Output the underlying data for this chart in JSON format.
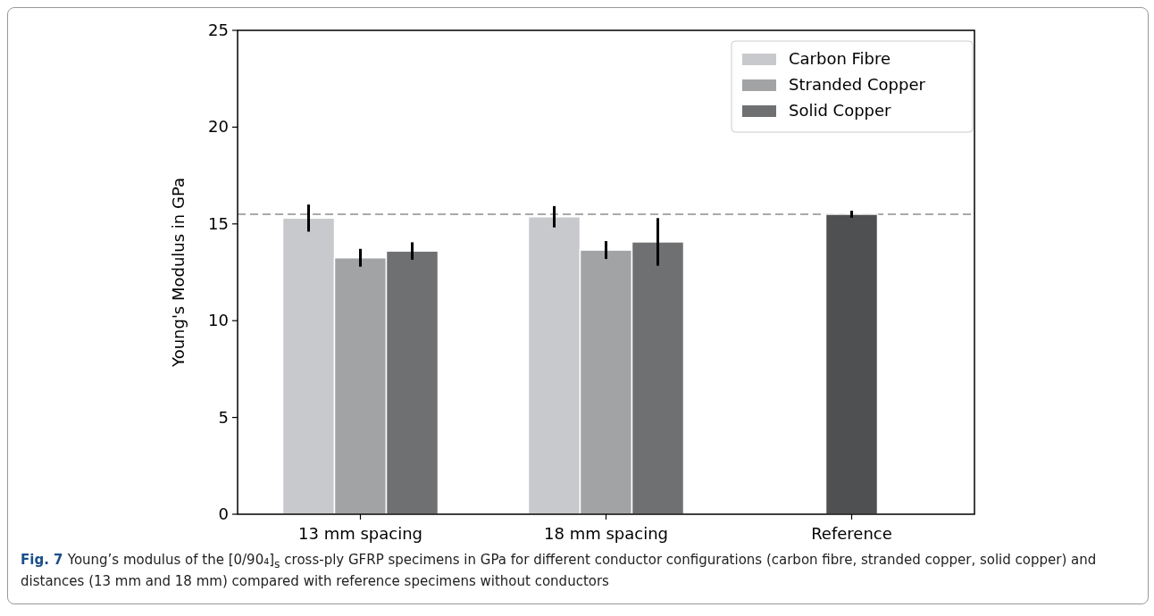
{
  "chart_data": {
    "type": "bar",
    "ylabel": "Young's Modulus in GPa",
    "categories": [
      "13 mm spacing",
      "18 mm spacing",
      "Reference"
    ],
    "series": [
      {
        "name": "Carbon Fibre",
        "color": "#c8c9cc",
        "values": [
          15.3,
          15.37,
          null
        ],
        "errors": [
          0.7,
          0.55,
          null
        ]
      },
      {
        "name": "Stranded Copper",
        "color": "#a2a3a5",
        "values": [
          13.25,
          13.65,
          null
        ],
        "errors": [
          0.46,
          0.46,
          null
        ]
      },
      {
        "name": "Solid Copper",
        "color": "#6f7072",
        "values": [
          13.6,
          14.07,
          null
        ],
        "errors": [
          0.45,
          1.23,
          null
        ]
      },
      {
        "color": "#4f5052",
        "values": [
          null,
          null,
          15.5
        ],
        "errors": [
          null,
          null,
          0.18
        ]
      }
    ],
    "ylim": [
      0,
      25
    ],
    "yticks": [
      0,
      5,
      10,
      15,
      20,
      25
    ],
    "ref_lines": [
      {
        "axis": "y",
        "value": 15.5,
        "color": "#aaaaaa",
        "line_style": "dashed"
      }
    ],
    "legend": "top right",
    "grid": false,
    "annotations": [
      "Fig. 7",
      "Young’s modulus of the [0/90₄]$_{s}$ cross-ply GFRP specimens in GPa for different conductor configurations (carbon fibre, stranded copper, solid copper) and distances (13 mm and 18 mm) compared with reference specimens without conductors"
    ]
  }
}
